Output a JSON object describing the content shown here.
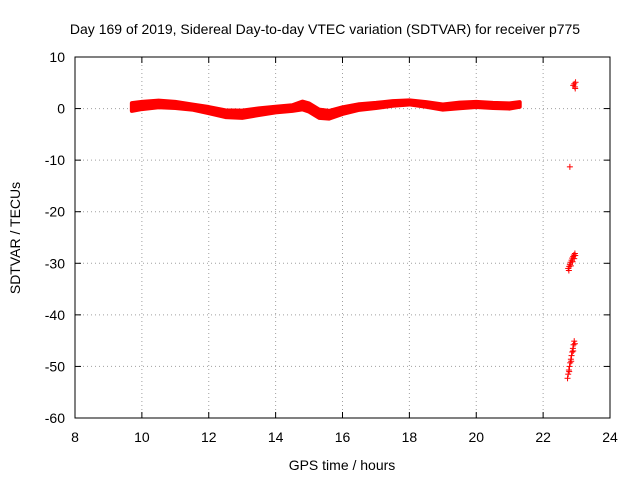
{
  "chart_data": {
    "type": "scatter",
    "title": "Day 169 of 2019, Sidereal Day-to-day VTEC variation (SDTVAR) for receiver p775",
    "xlabel": "GPS time / hours",
    "ylabel": "SDTVAR / TECUs",
    "xlim": [
      8,
      24
    ],
    "ylim": [
      -60,
      10
    ],
    "xticks": [
      8,
      10,
      12,
      14,
      16,
      18,
      20,
      22,
      24
    ],
    "yticks": [
      10,
      0,
      -10,
      -20,
      -30,
      -40,
      -50,
      -60
    ],
    "grid": true,
    "marker": "plus",
    "color": "#ff0000",
    "series": [
      {
        "band": [
          [
            9.7,
            0.3,
            1.5
          ],
          [
            10.0,
            0.6,
            1.4
          ],
          [
            10.5,
            0.9,
            1.3
          ],
          [
            11.0,
            0.7,
            1.2
          ],
          [
            11.5,
            0.3,
            1.0
          ],
          [
            12.0,
            -0.3,
            1.2
          ],
          [
            12.5,
            -1.0,
            1.3
          ],
          [
            13.0,
            -1.1,
            1.4
          ],
          [
            13.5,
            -0.6,
            1.3
          ],
          [
            14.0,
            -0.2,
            1.1
          ],
          [
            14.5,
            0.1,
            1.1
          ],
          [
            14.8,
            0.6,
            1.5
          ],
          [
            15.0,
            0.2,
            1.6
          ],
          [
            15.3,
            -1.0,
            1.6
          ],
          [
            15.6,
            -1.2,
            1.5
          ],
          [
            16.0,
            -0.4,
            1.3
          ],
          [
            16.5,
            0.3,
            1.1
          ],
          [
            17.0,
            0.6,
            1.0
          ],
          [
            17.5,
            1.0,
            0.9
          ],
          [
            18.0,
            1.2,
            0.8
          ],
          [
            18.5,
            0.8,
            0.9
          ],
          [
            19.0,
            0.3,
            1.0
          ],
          [
            19.5,
            0.6,
            1.1
          ],
          [
            20.0,
            0.8,
            1.0
          ],
          [
            20.5,
            0.6,
            1.0
          ],
          [
            21.0,
            0.5,
            1.0
          ],
          [
            21.3,
            0.8,
            0.9
          ]
        ],
        "points": [
          [
            22.8,
            -11.3
          ],
          [
            22.95,
            4.2
          ],
          [
            22.93,
            4.8
          ],
          [
            22.97,
            5.1
          ],
          [
            22.9,
            4.5
          ],
          [
            22.96,
            3.9
          ],
          [
            22.75,
            -31.0
          ],
          [
            22.78,
            -30.6
          ],
          [
            22.8,
            -30.2
          ],
          [
            22.82,
            -29.8
          ],
          [
            22.85,
            -29.4
          ],
          [
            22.87,
            -29.0
          ],
          [
            22.9,
            -28.7
          ],
          [
            22.92,
            -28.4
          ],
          [
            22.95,
            -28.1
          ],
          [
            22.77,
            -31.4
          ],
          [
            22.83,
            -30.5
          ],
          [
            22.88,
            -29.7
          ],
          [
            22.93,
            -29.1
          ],
          [
            22.96,
            -28.5
          ],
          [
            22.73,
            -52.3
          ],
          [
            22.75,
            -51.5
          ],
          [
            22.77,
            -50.7
          ],
          [
            22.79,
            -50.0
          ],
          [
            22.81,
            -49.3
          ],
          [
            22.83,
            -48.6
          ],
          [
            22.85,
            -47.9
          ],
          [
            22.87,
            -47.2
          ],
          [
            22.89,
            -46.5
          ],
          [
            22.91,
            -45.8
          ],
          [
            22.93,
            -45.1
          ],
          [
            22.95,
            -45.6
          ],
          [
            22.78,
            -51.0
          ],
          [
            22.84,
            -49.0
          ],
          [
            22.9,
            -47.0
          ]
        ]
      }
    ]
  }
}
